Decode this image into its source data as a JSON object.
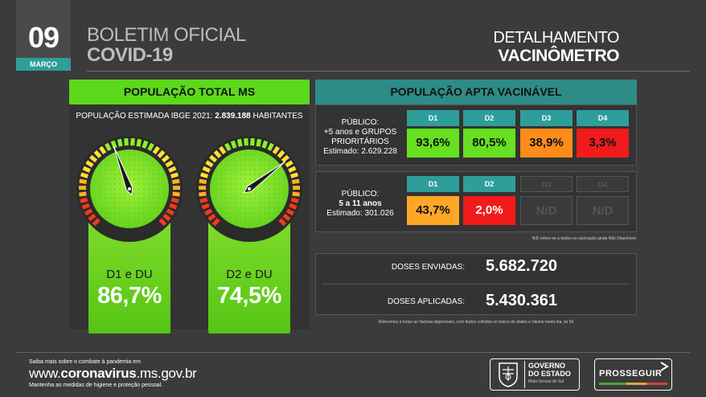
{
  "header": {
    "day": "09",
    "month": "MARÇO",
    "bulletin_line1": "BOLETIM OFICIAL",
    "bulletin_line2": "COVID-19",
    "detail_line1": "DETALHAMENTO",
    "detail_line2": "VACINÔMETRO"
  },
  "left": {
    "title": "POPULAÇÃO TOTAL MS",
    "estimate_prefix": "POPULAÇÃO ESTIMADA IBGE 2021: ",
    "estimate_value": "2.839.188",
    "estimate_suffix": " HABITANTES",
    "gauges": [
      {
        "label": "D1 e DU",
        "value": "86,7%",
        "fraction": 0.867
      },
      {
        "label": "D2 e DU",
        "value": "74,5%",
        "fraction": 0.745
      }
    ]
  },
  "right": {
    "title": "POPULAÇÃO APTA VACINÁVEL",
    "group1": {
      "line1": "PÚBLICO:",
      "line2": "+5 anos e GRUPOS",
      "line3": "PRIORITÁRIOS",
      "line4": "Estimado: 2.629.228",
      "doses": [
        {
          "head": "D1",
          "value": "93,6%",
          "color": "#66e021"
        },
        {
          "head": "D2",
          "value": "80,5%",
          "color": "#66e021"
        },
        {
          "head": "D3",
          "value": "38,9%",
          "color": "#ff8c1a"
        },
        {
          "head": "D4",
          "value": "3,3%",
          "color": "#f21b1b"
        }
      ]
    },
    "group2": {
      "line1": "PÚBLICO:",
      "line2": "5 a 11 anos",
      "line3": "Estimado: 301.026",
      "doses": [
        {
          "head": "D1",
          "value": "43,7%",
          "color": "#ffa726",
          "enabled": true
        },
        {
          "head": "D2",
          "value": "2,0%",
          "color": "#f21b1b",
          "enabled": true
        },
        {
          "head": "D3",
          "value": "N/D",
          "enabled": false
        },
        {
          "head": "D4",
          "value": "N/D",
          "enabled": false
        }
      ]
    },
    "nd_note": "N/D refere-se a dados ou vacinação ainda Não Disponível.",
    "sent_label": "DOSES ENVIADAS:",
    "sent_value": "5.682.720",
    "applied_label": "DOSES APLICADAS:",
    "applied_value": "5.430.361",
    "source_note": "Referentes a todas as Vacinas disponíveis, com dados colhidos no banco de dados e-Vacine nesta dia, às 5h"
  },
  "footer": {
    "line1": "Saiba mais sobre o combate à pandemia em",
    "url_prefix": "www.",
    "url_bold": "coronavirus",
    "url_suffix": ".ms.gov.br",
    "line3": "Mantenha as medidas de higiene e proteção pessoal.",
    "gov_line1": "GOVERNO",
    "gov_line2": "DO ESTADO",
    "gov_line3": "Mato Grosso do Sul",
    "prosseguir": "PROSSEGUIR"
  },
  "colors": {
    "green": "#5cd91b",
    "teal": "#2d8c88",
    "background": "#3b3b3b"
  }
}
